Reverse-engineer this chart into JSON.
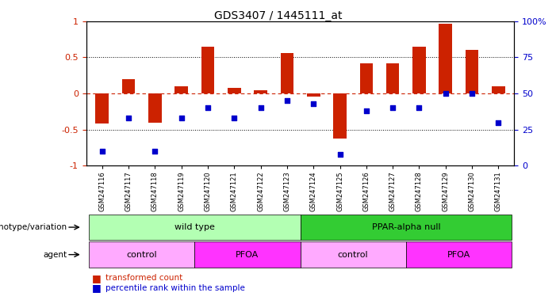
{
  "title": "GDS3407 / 1445111_at",
  "samples": [
    "GSM247116",
    "GSM247117",
    "GSM247118",
    "GSM247119",
    "GSM247120",
    "GSM247121",
    "GSM247122",
    "GSM247123",
    "GSM247124",
    "GSM247125",
    "GSM247126",
    "GSM247127",
    "GSM247128",
    "GSM247129",
    "GSM247130",
    "GSM247131"
  ],
  "bar_values": [
    -0.42,
    0.2,
    -0.4,
    0.1,
    0.65,
    0.08,
    0.05,
    0.56,
    -0.04,
    -0.62,
    0.42,
    0.42,
    0.65,
    0.97,
    0.6,
    0.1
  ],
  "dot_values_pct": [
    10,
    33,
    10,
    33,
    40,
    33,
    40,
    45,
    43,
    8,
    38,
    40,
    40,
    50,
    50,
    30
  ],
  "bar_color": "#cc2200",
  "dot_color": "#0000cc",
  "ylim_left": [
    -1,
    1
  ],
  "yticks_left": [
    -1,
    -0.5,
    0,
    0.5,
    1
  ],
  "ytick_labels_left": [
    "-1",
    "-0.5",
    "0",
    "0.5",
    "1"
  ],
  "yticks_right": [
    0,
    25,
    50,
    75,
    100
  ],
  "ytick_labels_right": [
    "0",
    "25",
    "50",
    "75",
    "100%"
  ],
  "hlines_dotted": [
    0.5,
    -0.5
  ],
  "hline_red": 0,
  "genotype_groups": [
    {
      "label": "wild type",
      "start": 0,
      "end": 8,
      "color": "#b3ffb3"
    },
    {
      "label": "PPAR-alpha null",
      "start": 8,
      "end": 16,
      "color": "#33cc33"
    }
  ],
  "agent_groups": [
    {
      "label": "control",
      "start": 0,
      "end": 4,
      "color": "#ffaaff"
    },
    {
      "label": "PFOA",
      "start": 4,
      "end": 8,
      "color": "#ff33ff"
    },
    {
      "label": "control",
      "start": 8,
      "end": 12,
      "color": "#ffaaff"
    },
    {
      "label": "PFOA",
      "start": 12,
      "end": 16,
      "color": "#ff33ff"
    }
  ],
  "legend_items": [
    {
      "label": "transformed count",
      "color": "#cc2200",
      "marker": "s"
    },
    {
      "label": "percentile rank within the sample",
      "color": "#0000cc",
      "marker": "s"
    }
  ],
  "genotype_label": "genotype/variation",
  "agent_label": "agent"
}
